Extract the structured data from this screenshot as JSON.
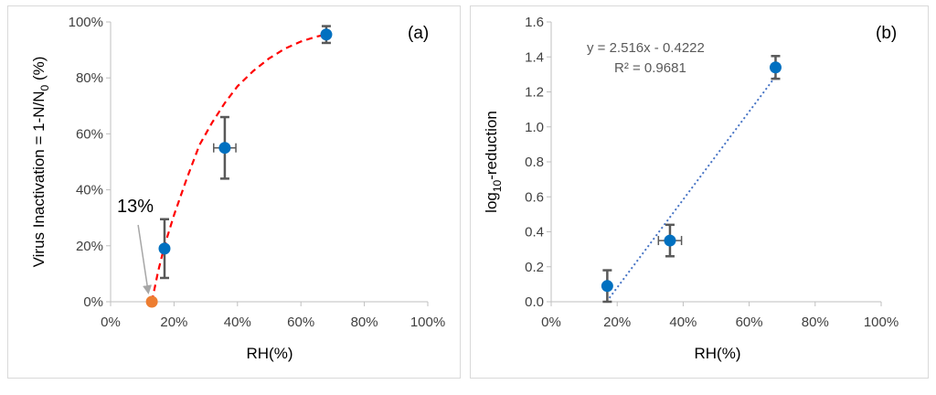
{
  "chart_data": [
    {
      "id": "a",
      "type": "scatter",
      "panel_label": "(a)",
      "xlabel": "RH(%)",
      "ylabel_parts": [
        "Virus Inactivation = 1-N/N",
        "0",
        " (%)"
      ],
      "xlim": [
        0,
        100
      ],
      "ylim": [
        0,
        100
      ],
      "xticks": [
        0,
        20,
        40,
        60,
        80,
        100
      ],
      "xtick_labels": [
        "0%",
        "20%",
        "40%",
        "60%",
        "80%",
        "100%"
      ],
      "yticks": [
        0,
        20,
        40,
        60,
        80,
        100
      ],
      "ytick_labels": [
        "0%",
        "20%",
        "40%",
        "60%",
        "80%",
        "100%"
      ],
      "grid": false,
      "points": [
        {
          "x": 17,
          "y": 19,
          "y_err": 10.5,
          "x_err": 0
        },
        {
          "x": 36,
          "y": 55,
          "y_err": 11,
          "x_err": 3.5
        },
        {
          "x": 68,
          "y": 95.5,
          "y_err": 3,
          "x_err": 0
        }
      ],
      "intercept_point": {
        "x": 13,
        "y": 0
      },
      "annotation": "13%",
      "fit_curve": {
        "style": "dashed",
        "points": [
          [
            13,
            0
          ],
          [
            15,
            11
          ],
          [
            17,
            20
          ],
          [
            20,
            31
          ],
          [
            24,
            44
          ],
          [
            28,
            56
          ],
          [
            32,
            64
          ],
          [
            36,
            71
          ],
          [
            40,
            77
          ],
          [
            45,
            82.5
          ],
          [
            50,
            87
          ],
          [
            55,
            90.5
          ],
          [
            60,
            93
          ],
          [
            65,
            94.8
          ],
          [
            68,
            95.5
          ]
        ]
      },
      "colors": {
        "points": "#0070c0",
        "intercept": "#ed7d31",
        "fit": "#ff0000",
        "errorbar": "#595959",
        "arrow": "#a6a6a6"
      }
    },
    {
      "id": "b",
      "type": "scatter",
      "panel_label": "(b)",
      "xlabel": "RH(%)",
      "ylabel_parts": [
        "log",
        "10",
        "-reduction"
      ],
      "xlim": [
        0,
        100
      ],
      "ylim": [
        0,
        1.6
      ],
      "xticks": [
        0,
        20,
        40,
        60,
        80,
        100
      ],
      "xtick_labels": [
        "0%",
        "20%",
        "40%",
        "60%",
        "80%",
        "100%"
      ],
      "yticks": [
        0,
        0.2,
        0.4,
        0.6,
        0.8,
        1.0,
        1.2,
        1.4,
        1.6
      ],
      "ytick_labels": [
        "0.0",
        "0.2",
        "0.4",
        "0.6",
        "0.8",
        "1.0",
        "1.2",
        "1.4",
        "1.6"
      ],
      "grid": false,
      "points": [
        {
          "x": 17,
          "y": 0.09,
          "y_err": 0.09,
          "x_err": 0
        },
        {
          "x": 36,
          "y": 0.35,
          "y_err": 0.09,
          "x_err": 3.5
        },
        {
          "x": 68,
          "y": 1.34,
          "y_err": 0.065,
          "x_err": 0
        }
      ],
      "trendline": {
        "style": "dotted",
        "slope": 2.516,
        "intercept": -0.4222,
        "x_start": 16.8,
        "x_end": 68
      },
      "equation": "y = 2.516x - 0.4222",
      "r_squared": "R² = 0.9681",
      "colors": {
        "points": "#0070c0",
        "trend": "#4472c4",
        "errorbar": "#595959"
      }
    }
  ]
}
